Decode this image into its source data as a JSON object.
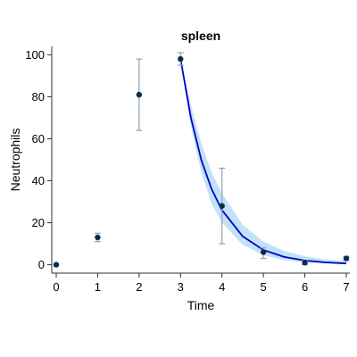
{
  "chart_data": {
    "type": "scatter",
    "title": "spleen",
    "xlabel": "Time",
    "ylabel": "Neutrophils",
    "xlim": [
      0,
      7
    ],
    "ylim": [
      -4,
      104
    ],
    "x_ticks": [
      0,
      1,
      2,
      3,
      4,
      5,
      6,
      7
    ],
    "y_ticks": [
      0,
      20,
      40,
      60,
      80,
      100
    ],
    "grid": false,
    "points": [
      {
        "x": 0,
        "y": 0,
        "err_low": 0,
        "err_high": 0
      },
      {
        "x": 1,
        "y": 13,
        "err_low": 11,
        "err_high": 15
      },
      {
        "x": 2,
        "y": 81,
        "err_low": 64,
        "err_high": 98
      },
      {
        "x": 3,
        "y": 98,
        "err_low": 95,
        "err_high": 101
      },
      {
        "x": 4,
        "y": 28,
        "err_low": 10,
        "err_high": 46
      },
      {
        "x": 5,
        "y": 6,
        "err_low": 3,
        "err_high": 8
      },
      {
        "x": 6,
        "y": 1,
        "err_low": 0,
        "err_high": 2
      },
      {
        "x": 7,
        "y": 3,
        "err_low": 2,
        "err_high": 4
      }
    ],
    "fit_curve": [
      {
        "x": 3.0,
        "y": 98,
        "lo": 98,
        "hi": 98
      },
      {
        "x": 3.25,
        "y": 70,
        "lo": 66,
        "hi": 76
      },
      {
        "x": 3.5,
        "y": 50,
        "lo": 44,
        "hi": 58
      },
      {
        "x": 3.75,
        "y": 36,
        "lo": 29,
        "hi": 44
      },
      {
        "x": 4.0,
        "y": 26,
        "lo": 20,
        "hi": 34
      },
      {
        "x": 4.5,
        "y": 13.5,
        "lo": 9.5,
        "hi": 19
      },
      {
        "x": 5.0,
        "y": 7,
        "lo": 4.5,
        "hi": 11
      },
      {
        "x": 5.5,
        "y": 3.7,
        "lo": 2.2,
        "hi": 6.5
      },
      {
        "x": 6.0,
        "y": 2.0,
        "lo": 1.0,
        "hi": 4.0
      },
      {
        "x": 6.5,
        "y": 1.1,
        "lo": 0.5,
        "hi": 2.5
      },
      {
        "x": 7.0,
        "y": 0.6,
        "lo": 0.2,
        "hi": 1.6
      }
    ],
    "colors": {
      "point": "#0b2d4d",
      "errorbar": "#8aa5b8",
      "fit_line": "#0000cc",
      "band": "#9fd3f2"
    }
  }
}
